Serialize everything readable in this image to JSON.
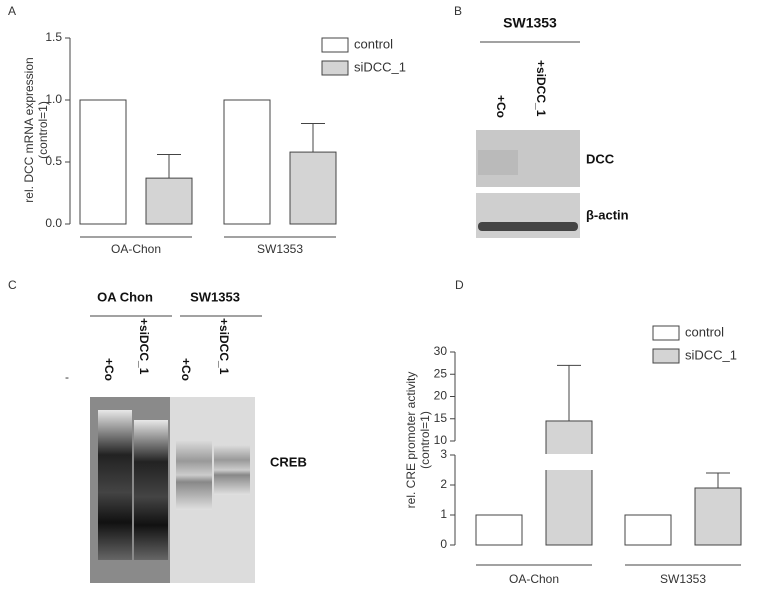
{
  "chart_data": [
    {
      "type": "bar",
      "letter": "A",
      "ylabel": [
        "rel. DCC mRNA expression",
        "(control=1)"
      ],
      "categories": [
        "OA-Chon",
        "SW1353"
      ],
      "series": [
        {
          "name": "control",
          "color": "#ffffff",
          "values": [
            1,
            1
          ]
        },
        {
          "name": "siDCC_1",
          "color": "#d4d4d4",
          "values": [
            0.37,
            0.58
          ],
          "error": [
            0.19,
            0.23
          ]
        }
      ],
      "ylim": [
        0,
        1.5
      ],
      "yticks": [
        {
          "value": 0,
          "label": "0.0"
        },
        0.5,
        {
          "value": 1,
          "label": "1.0"
        },
        1.5
      ]
    },
    {
      "type": "bar",
      "letter": "D",
      "ylabel": [
        "rel. CRE promoter activity",
        "(control=1)"
      ],
      "categories": [
        "OA-Chon",
        "SW1353"
      ],
      "series": [
        {
          "name": "control",
          "color": "#ffffff",
          "values": [
            1,
            1
          ]
        },
        {
          "name": "siDCC_1",
          "color": "#d4d4d4",
          "values": [
            14.5,
            1.9
          ],
          "error": [
            12.5,
            0.5
          ]
        }
      ],
      "y_segments": [
        {
          "ylim": [
            0,
            3
          ],
          "yticks": [
            0,
            1,
            2,
            3
          ]
        },
        {
          "ylim": [
            10,
            30
          ],
          "yticks": [
            10,
            15,
            20,
            25,
            30
          ]
        }
      ]
    }
  ],
  "blot_b": {
    "letter": "B",
    "cell_line": "SW1353",
    "lanes": [
      "+Co",
      "+siDCC_1"
    ],
    "bands": [
      "DCC",
      "β-actin"
    ]
  },
  "blot_c": {
    "letter": "C",
    "groups": [
      "OA Chon",
      "SW1353"
    ],
    "lanes": [
      "+Co",
      "+siDCC_1",
      "+Co",
      "+siDCC_1"
    ],
    "band": "CREB",
    "marker": "-"
  }
}
